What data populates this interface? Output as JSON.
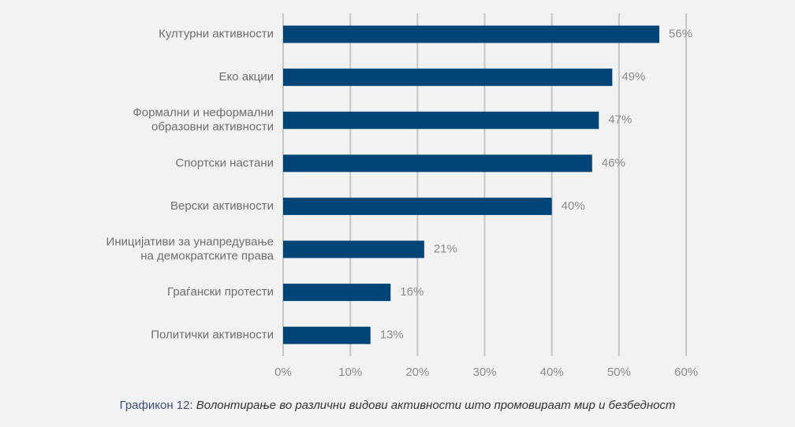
{
  "chart_data": {
    "type": "bar",
    "orientation": "horizontal",
    "categories": [
      [
        "Културни активности"
      ],
      [
        "Еко акции"
      ],
      [
        "Формални и неформални",
        "образовни активности"
      ],
      [
        "Спортски настани"
      ],
      [
        "Верски активности"
      ],
      [
        "Иницијативи за унапредување",
        "на демократските права"
      ],
      [
        "Граѓански протести"
      ],
      [
        "Политички активности"
      ]
    ],
    "values": [
      56,
      49,
      47,
      46,
      40,
      21,
      16,
      13
    ],
    "value_labels": [
      "56%",
      "49%",
      "47%",
      "46%",
      "40%",
      "21%",
      "16%",
      "13%"
    ],
    "x_ticks": [
      0,
      10,
      20,
      30,
      40,
      50,
      60
    ],
    "x_tick_labels": [
      "0%",
      "10%",
      "20%",
      "30%",
      "40%",
      "50%",
      "60%"
    ],
    "xlim": [
      0,
      60
    ],
    "grid": "vertical",
    "bar_color": "#004478",
    "grid_color": "#c6c6c6"
  },
  "caption": {
    "label": "Графикон 12:",
    "title": "Волонтирање во различни видови активности што промовираат мир и безбедност"
  }
}
